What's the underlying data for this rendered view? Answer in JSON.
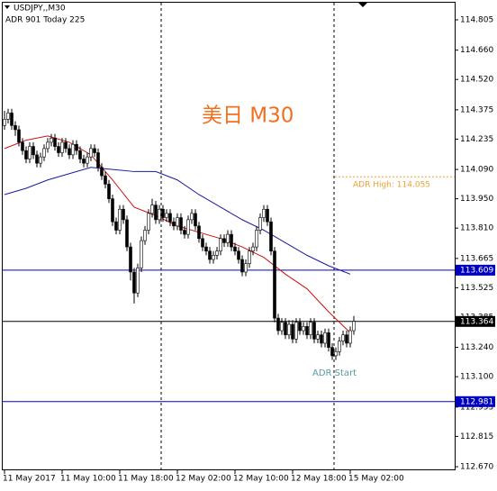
{
  "chart_data": {
    "type": "candlestick",
    "symbol": "USDJPY,,M30",
    "info": "ADR 901  Today 225",
    "title": "美日 M30",
    "annotation": "ADR Start",
    "categories": [
      "11 May 2017",
      null,
      null,
      null,
      null,
      null,
      null,
      null,
      null,
      null,
      null,
      null,
      null,
      null,
      null,
      null,
      "11 May 10:00",
      null,
      null,
      null,
      null,
      null,
      null,
      null,
      null,
      null,
      null,
      null,
      null,
      null,
      null,
      null,
      "11 May 18:00",
      null,
      null,
      null,
      null,
      null,
      null,
      null,
      null,
      null,
      null,
      null,
      null,
      null,
      null,
      null,
      "12 May 02:00",
      null,
      null,
      null,
      null,
      null,
      null,
      null,
      null,
      null,
      null,
      null,
      null,
      null,
      null,
      null,
      "12 May 10:00",
      null,
      null,
      null,
      null,
      null,
      null,
      null,
      null,
      null,
      null,
      null,
      null,
      null,
      null,
      null,
      "12 May 18:00",
      null,
      null,
      null,
      null,
      null,
      null,
      null,
      null,
      null,
      null,
      null,
      null,
      null,
      null,
      null,
      "15 May 02:00",
      null
    ],
    "candles": [
      [
        114.3,
        114.37,
        114.28,
        114.33
      ],
      [
        114.33,
        114.38,
        114.31,
        114.36
      ],
      [
        114.36,
        114.38,
        114.28,
        114.3
      ],
      [
        114.3,
        114.32,
        114.25,
        114.28
      ],
      [
        114.28,
        114.3,
        114.2,
        114.22
      ],
      [
        114.22,
        114.24,
        114.16,
        114.18
      ],
      [
        114.18,
        114.2,
        114.12,
        114.14
      ],
      [
        114.14,
        114.22,
        114.12,
        114.2
      ],
      [
        114.2,
        114.22,
        114.14,
        114.16
      ],
      [
        114.16,
        114.18,
        114.1,
        114.12
      ],
      [
        114.12,
        114.17,
        114.1,
        114.15
      ],
      [
        114.15,
        114.21,
        114.13,
        114.19
      ],
      [
        114.19,
        114.24,
        114.17,
        114.22
      ],
      [
        114.22,
        114.26,
        114.2,
        114.24
      ],
      [
        114.24,
        114.26,
        114.18,
        114.2
      ],
      [
        114.2,
        114.22,
        114.15,
        114.17
      ],
      [
        114.17,
        114.24,
        114.15,
        114.22
      ],
      [
        114.22,
        114.24,
        114.17,
        114.19
      ],
      [
        114.19,
        114.21,
        114.14,
        114.16
      ],
      [
        114.16,
        114.23,
        114.14,
        114.21
      ],
      [
        114.21,
        114.23,
        114.16,
        114.18
      ],
      [
        114.18,
        114.2,
        114.12,
        114.14
      ],
      [
        114.14,
        114.16,
        114.1,
        114.12
      ],
      [
        114.12,
        114.17,
        114.1,
        114.15
      ],
      [
        114.15,
        114.21,
        114.13,
        114.19
      ],
      [
        114.19,
        114.21,
        114.15,
        114.17
      ],
      [
        114.17,
        114.19,
        114.08,
        114.1
      ],
      [
        114.1,
        114.12,
        114.04,
        114.06
      ],
      [
        114.06,
        114.08,
        114.0,
        114.02
      ],
      [
        114.02,
        114.04,
        113.93,
        113.95
      ],
      [
        113.95,
        113.97,
        113.82,
        113.84
      ],
      [
        113.84,
        113.86,
        113.78,
        113.8
      ],
      [
        113.8,
        113.92,
        113.78,
        113.9
      ],
      [
        113.9,
        113.92,
        113.83,
        113.85
      ],
      [
        113.85,
        113.87,
        113.7,
        113.72
      ],
      [
        113.72,
        113.74,
        113.56,
        113.6
      ],
      [
        113.6,
        113.62,
        113.45,
        113.5
      ],
      [
        113.5,
        113.64,
        113.48,
        113.62
      ],
      [
        113.62,
        113.77,
        113.6,
        113.75
      ],
      [
        113.75,
        113.82,
        113.73,
        113.8
      ],
      [
        113.8,
        113.9,
        113.78,
        113.88
      ],
      [
        113.88,
        113.95,
        113.86,
        113.92
      ],
      [
        113.92,
        113.94,
        113.83,
        113.85
      ],
      [
        113.85,
        113.92,
        113.83,
        113.9
      ],
      [
        113.9,
        113.92,
        113.84,
        113.86
      ],
      [
        113.86,
        113.9,
        113.84,
        113.88
      ],
      [
        113.88,
        113.9,
        113.82,
        113.84
      ],
      [
        113.84,
        113.86,
        113.8,
        113.82
      ],
      [
        113.82,
        113.88,
        113.8,
        113.86
      ],
      [
        113.86,
        113.88,
        113.78,
        113.8
      ],
      [
        113.8,
        113.82,
        113.76,
        113.78
      ],
      [
        113.78,
        113.87,
        113.76,
        113.85
      ],
      [
        113.85,
        113.9,
        113.83,
        113.88
      ],
      [
        113.88,
        113.9,
        113.8,
        113.82
      ],
      [
        113.82,
        113.84,
        113.74,
        113.76
      ],
      [
        113.76,
        113.78,
        113.7,
        113.72
      ],
      [
        113.72,
        113.74,
        113.68,
        113.7
      ],
      [
        113.7,
        113.72,
        113.64,
        113.66
      ],
      [
        113.66,
        113.7,
        113.64,
        113.68
      ],
      [
        113.68,
        113.72,
        113.66,
        113.7
      ],
      [
        113.7,
        113.78,
        113.68,
        113.76
      ],
      [
        113.76,
        113.78,
        113.72,
        113.74
      ],
      [
        113.74,
        113.8,
        113.72,
        113.78
      ],
      [
        113.78,
        113.8,
        113.7,
        113.72
      ],
      [
        113.72,
        113.74,
        113.68,
        113.7
      ],
      [
        113.7,
        113.72,
        113.64,
        113.66
      ],
      [
        113.66,
        113.68,
        113.58,
        113.6
      ],
      [
        113.6,
        113.66,
        113.58,
        113.64
      ],
      [
        113.64,
        113.72,
        113.62,
        113.7
      ],
      [
        113.7,
        113.74,
        113.68,
        113.72
      ],
      [
        113.72,
        113.82,
        113.7,
        113.8
      ],
      [
        113.8,
        113.88,
        113.78,
        113.86
      ],
      [
        113.86,
        113.92,
        113.84,
        113.9
      ],
      [
        113.9,
        113.92,
        113.82,
        113.84
      ],
      [
        113.84,
        113.86,
        113.68,
        113.7
      ],
      [
        113.7,
        113.72,
        113.36,
        113.38
      ],
      [
        113.38,
        113.4,
        113.3,
        113.32
      ],
      [
        113.32,
        113.38,
        113.3,
        113.36
      ],
      [
        113.36,
        113.38,
        113.28,
        113.3
      ],
      [
        113.3,
        113.37,
        113.28,
        113.35
      ],
      [
        113.35,
        113.37,
        113.26,
        113.28
      ],
      [
        113.28,
        113.38,
        113.26,
        113.36
      ],
      [
        113.36,
        113.38,
        113.3,
        113.32
      ],
      [
        113.32,
        113.36,
        113.3,
        113.34
      ],
      [
        113.34,
        113.36,
        113.28,
        113.3
      ],
      [
        113.3,
        113.38,
        113.28,
        113.36
      ],
      [
        113.36,
        113.38,
        113.26,
        113.28
      ],
      [
        113.28,
        113.32,
        113.26,
        113.3
      ],
      [
        113.3,
        113.32,
        113.24,
        113.26
      ],
      [
        113.26,
        113.33,
        113.24,
        113.31
      ],
      [
        113.31,
        113.33,
        113.22,
        113.24
      ],
      [
        113.24,
        113.26,
        113.18,
        113.2
      ],
      [
        113.2,
        113.24,
        113.18,
        113.22
      ],
      [
        113.22,
        113.29,
        113.2,
        113.27
      ],
      [
        113.27,
        113.32,
        113.25,
        113.3
      ],
      [
        113.3,
        113.32,
        113.24,
        113.26
      ],
      [
        113.26,
        113.34,
        113.24,
        113.32
      ],
      [
        113.32,
        113.39,
        113.3,
        113.364
      ]
    ],
    "moving_averages": [
      {
        "color": "#d01010",
        "x": [
          0,
          6,
          12,
          18,
          24,
          30,
          36,
          42,
          48,
          54,
          60,
          66,
          72,
          78,
          84,
          90,
          96
        ],
        "values": [
          114.19,
          114.23,
          114.25,
          114.22,
          114.16,
          114.04,
          113.91,
          113.87,
          113.82,
          113.79,
          113.76,
          113.72,
          113.67,
          113.59,
          113.52,
          113.41,
          113.31
        ]
      },
      {
        "color": "#1a1aa0",
        "x": [
          0,
          6,
          12,
          18,
          24,
          30,
          36,
          42,
          48,
          54,
          60,
          66,
          72,
          78,
          84,
          90,
          96
        ],
        "values": [
          113.97,
          114.0,
          114.04,
          114.07,
          114.1,
          114.09,
          114.08,
          114.08,
          114.04,
          113.97,
          113.91,
          113.85,
          113.8,
          113.74,
          113.68,
          113.63,
          113.59
        ]
      }
    ],
    "price_lines": [
      {
        "value": 113.609,
        "color": "#0000c0"
      },
      {
        "value": 113.364,
        "color": "#000000"
      },
      {
        "value": 112.981,
        "color": "#0000c0"
      }
    ],
    "adr_high": {
      "value": 114.055,
      "label": "ADR High: 114.055",
      "color": "#f0a030"
    },
    "ylim": [
      112.653,
      114.891
    ],
    "yticks": [
      114.805,
      {
        "value": 114.66,
        "label": "114.660"
      },
      {
        "value": 114.52,
        "label": "114.520"
      },
      114.375,
      114.235,
      {
        "value": 114.09,
        "label": "114.090"
      },
      {
        "value": 113.95,
        "label": "113.950"
      },
      {
        "value": 113.81,
        "label": "113.810"
      },
      113.665,
      113.525,
      113.385,
      {
        "value": 113.24,
        "label": "113.240"
      },
      {
        "value": 113.1,
        "label": "113.100"
      },
      112.955,
      112.815,
      {
        "value": 112.67,
        "label": "112.670"
      }
    ]
  }
}
